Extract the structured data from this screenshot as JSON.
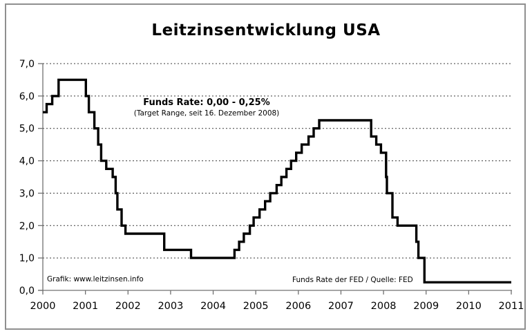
{
  "frame": {
    "border_color": "#8f8f8f",
    "background": "#ffffff"
  },
  "header": {
    "title": "Leitzinsentwicklung USA"
  },
  "annotation": {
    "line1": "Funds Rate: 0,00 - 0,25%",
    "line2": "(Target Range, seit 16. Dezember 2008)"
  },
  "footer": {
    "credit": "Grafik: www.leitzinsen.info",
    "source": "Funds Rate der FED / Quelle: FED"
  },
  "chart_data": {
    "type": "line",
    "step": true,
    "title": "Leitzinsentwicklung USA",
    "xlabel": "",
    "ylabel": "",
    "xlim": [
      2000,
      2011
    ],
    "ylim": [
      0,
      7
    ],
    "grid": "horizontal-dashed",
    "legend": "none",
    "line_color": "#000000",
    "axis_color": "#707070",
    "grid_color": "#3a3a3a",
    "x_ticks": [
      2000,
      2001,
      2002,
      2003,
      2004,
      2005,
      2006,
      2007,
      2008,
      2009,
      2010,
      2011
    ],
    "x_tick_labels": [
      "2000",
      "2001",
      "2002",
      "2003",
      "2004",
      "2005",
      "2006",
      "2007",
      "2008",
      "2009",
      "2010",
      "2011"
    ],
    "y_ticks": [
      0,
      1,
      2,
      3,
      4,
      5,
      6,
      7
    ],
    "y_tick_labels": [
      "0,0",
      "1,0",
      "2,0",
      "3,0",
      "4,0",
      "5,0",
      "6,0",
      "7,0"
    ],
    "series": [
      {
        "name": "Funds Rate der FED",
        "points": [
          [
            2000.0,
            5.5
          ],
          [
            2000.09,
            5.75
          ],
          [
            2000.22,
            6.0
          ],
          [
            2000.37,
            6.5
          ],
          [
            2001.01,
            6.0
          ],
          [
            2001.08,
            5.5
          ],
          [
            2001.21,
            5.0
          ],
          [
            2001.3,
            4.5
          ],
          [
            2001.37,
            4.0
          ],
          [
            2001.49,
            3.75
          ],
          [
            2001.64,
            3.5
          ],
          [
            2001.71,
            3.0
          ],
          [
            2001.75,
            2.5
          ],
          [
            2001.85,
            2.0
          ],
          [
            2001.94,
            1.75
          ],
          [
            2002.85,
            1.25
          ],
          [
            2003.48,
            1.0
          ],
          [
            2004.5,
            1.25
          ],
          [
            2004.61,
            1.5
          ],
          [
            2004.72,
            1.75
          ],
          [
            2004.86,
            2.0
          ],
          [
            2004.95,
            2.25
          ],
          [
            2005.09,
            2.5
          ],
          [
            2005.22,
            2.75
          ],
          [
            2005.34,
            3.0
          ],
          [
            2005.49,
            3.25
          ],
          [
            2005.6,
            3.5
          ],
          [
            2005.72,
            3.75
          ],
          [
            2005.83,
            4.0
          ],
          [
            2005.95,
            4.25
          ],
          [
            2006.08,
            4.5
          ],
          [
            2006.24,
            4.75
          ],
          [
            2006.36,
            5.0
          ],
          [
            2006.49,
            5.25
          ],
          [
            2007.71,
            4.75
          ],
          [
            2007.83,
            4.5
          ],
          [
            2007.94,
            4.25
          ],
          [
            2008.06,
            3.5
          ],
          [
            2008.08,
            3.0
          ],
          [
            2008.21,
            2.25
          ],
          [
            2008.33,
            2.0
          ],
          [
            2008.77,
            1.5
          ],
          [
            2008.82,
            1.0
          ],
          [
            2008.96,
            0.25
          ],
          [
            2011.0,
            0.25
          ]
        ]
      }
    ]
  }
}
